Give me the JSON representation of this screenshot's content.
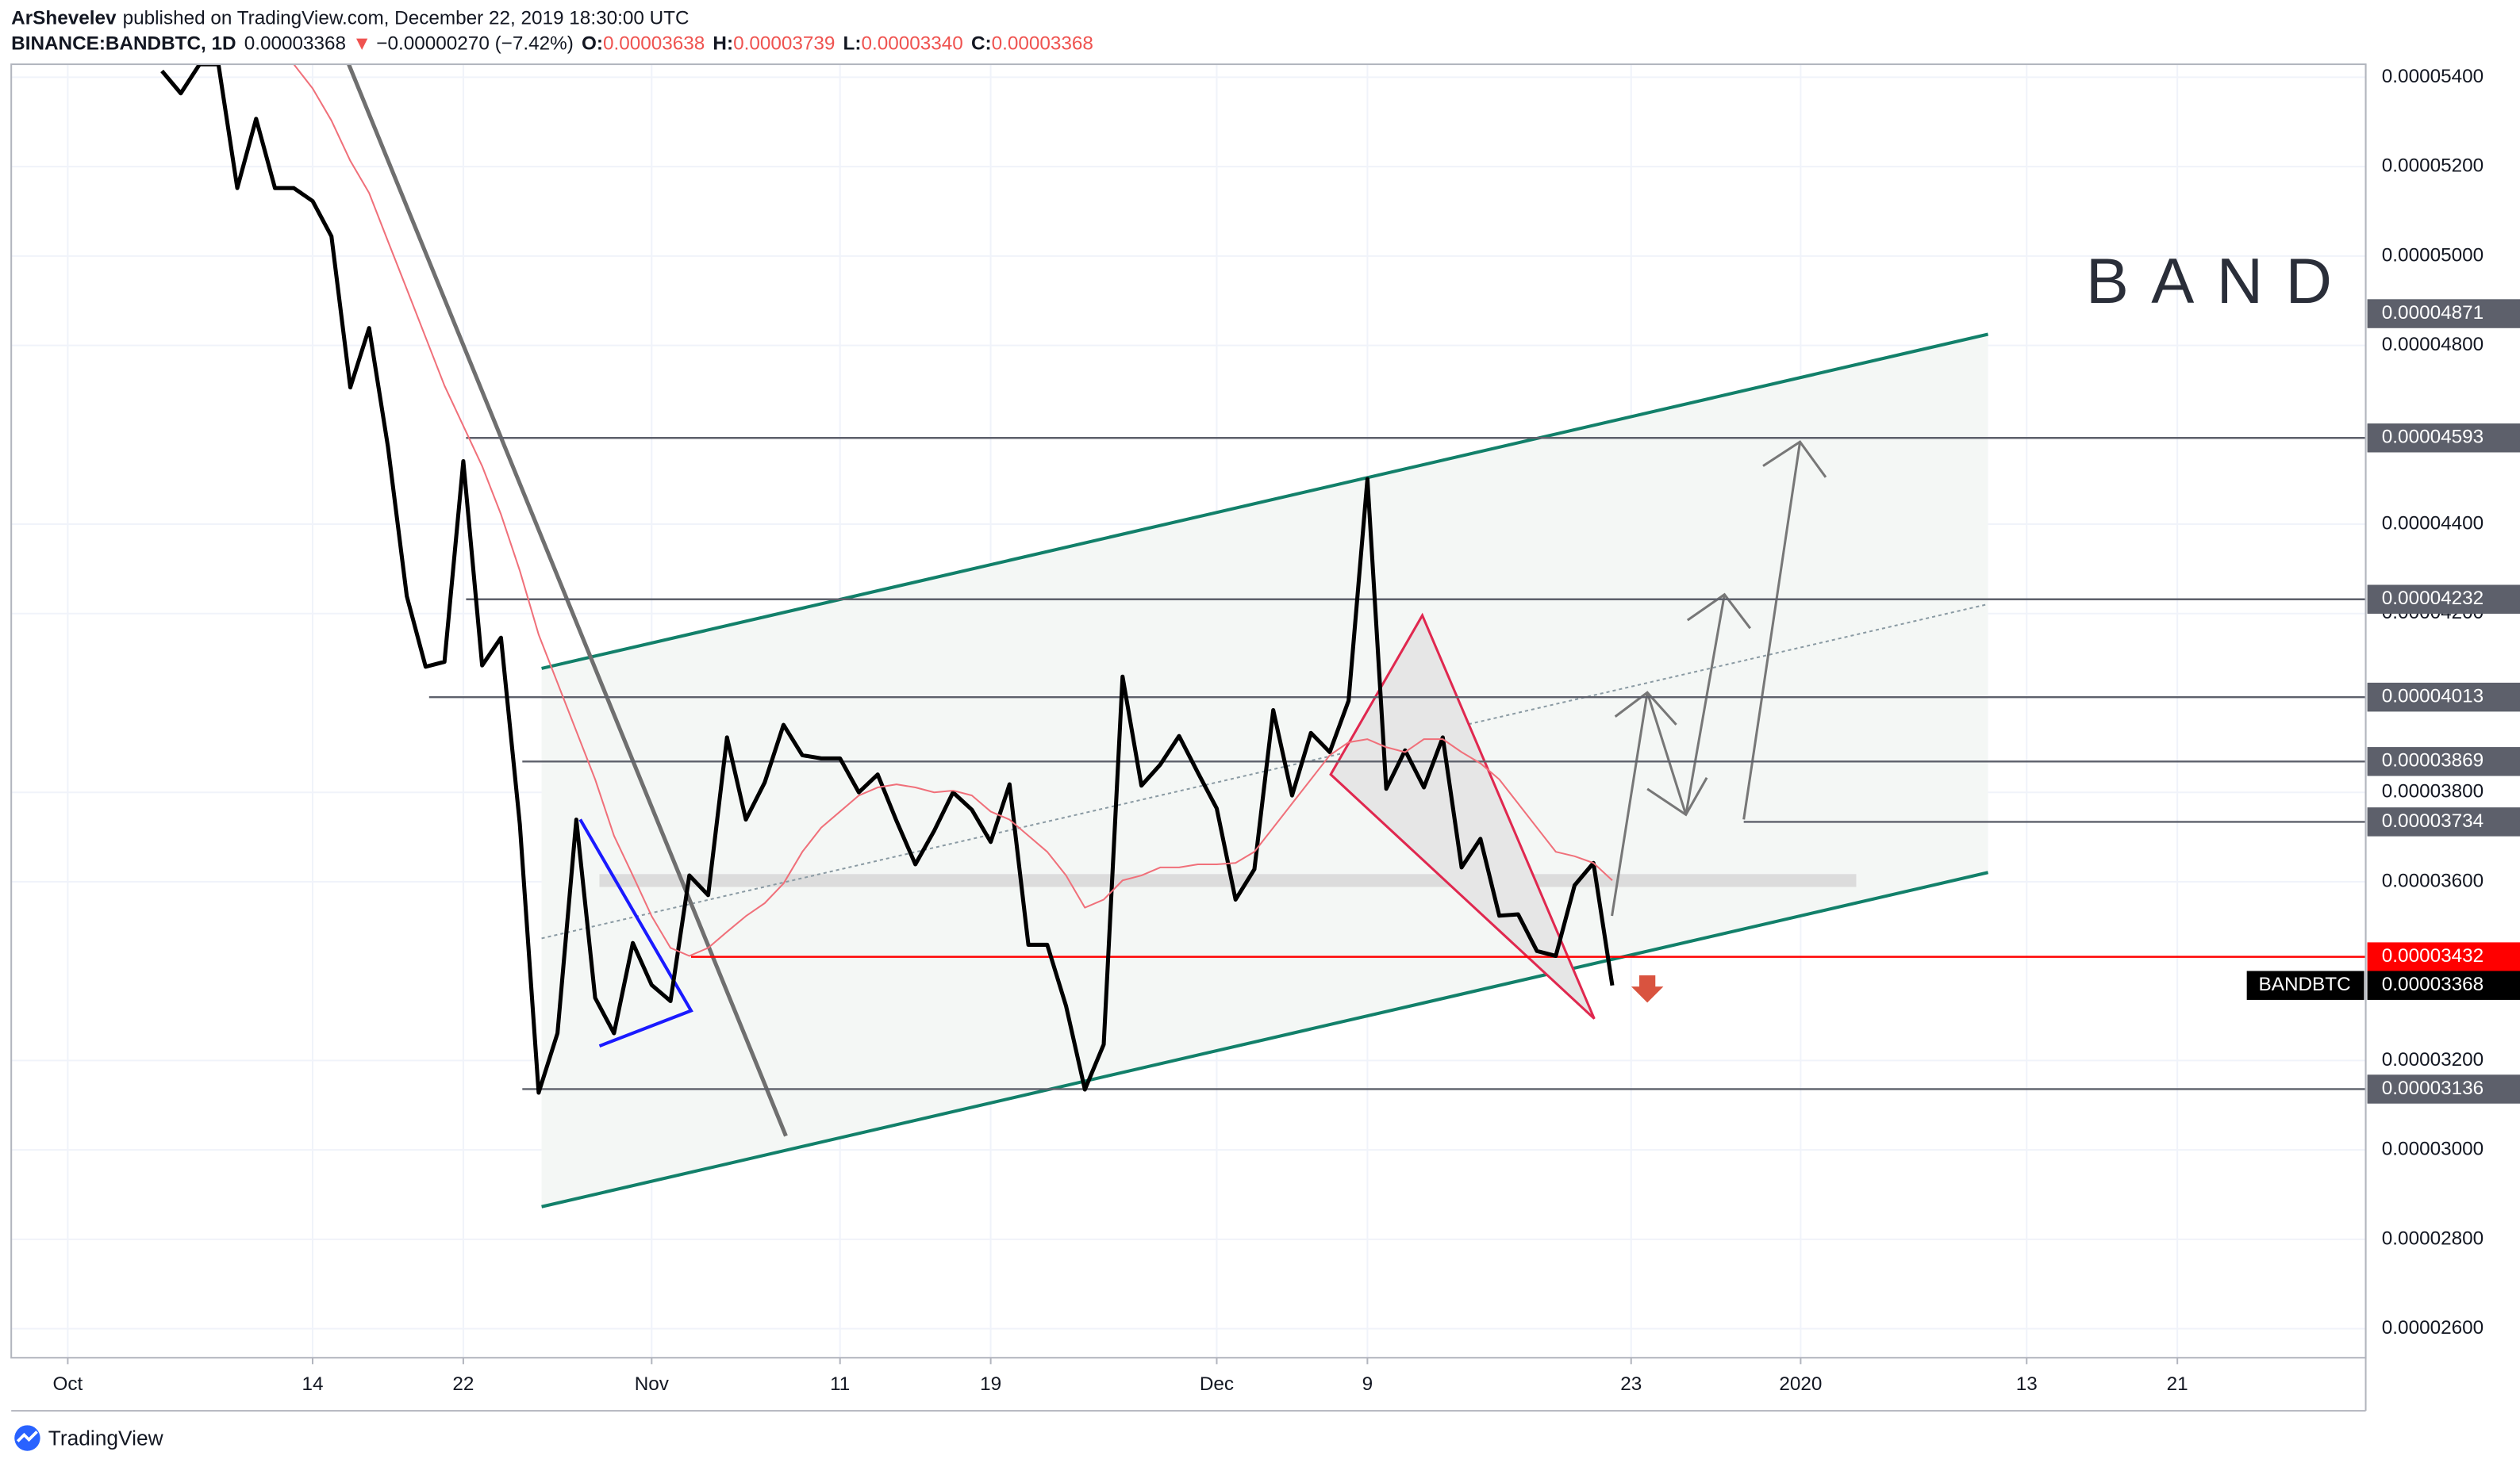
{
  "header": {
    "author": "ArShevelev",
    "published": "published on TradingView.com, December 22, 2019 18:30:00 UTC",
    "symbol": "BINANCE:BANDBTC, 1D",
    "last": "0.00003368",
    "change_arrow": "▼",
    "change": "−0.00000270 (−7.42%)",
    "ohlc": [
      {
        "key": "O:",
        "value": "0.00003638"
      },
      {
        "key": "H:",
        "value": "0.00003739"
      },
      {
        "key": "L:",
        "value": "0.00003340"
      },
      {
        "key": "C:",
        "value": "0.00003368"
      }
    ]
  },
  "chart_data": {
    "type": "line",
    "watermark": "BAND",
    "x": [
      "2019-10-06",
      "2019-10-07",
      "2019-10-08",
      "2019-10-09",
      "2019-10-10",
      "2019-10-11",
      "2019-10-12",
      "2019-10-13",
      "2019-10-14",
      "2019-10-15",
      "2019-10-16",
      "2019-10-17",
      "2019-10-18",
      "2019-10-19",
      "2019-10-20",
      "2019-10-21",
      "2019-10-22",
      "2019-10-23",
      "2019-10-24",
      "2019-10-25",
      "2019-10-26",
      "2019-10-27",
      "2019-10-28",
      "2019-10-29",
      "2019-10-30",
      "2019-10-31",
      "2019-11-01",
      "2019-11-02",
      "2019-11-03",
      "2019-11-04",
      "2019-11-05",
      "2019-11-06",
      "2019-11-07",
      "2019-11-08",
      "2019-11-09",
      "2019-11-10",
      "2019-11-11",
      "2019-11-12",
      "2019-11-13",
      "2019-11-14",
      "2019-11-15",
      "2019-11-16",
      "2019-11-17",
      "2019-11-18",
      "2019-11-19",
      "2019-11-20",
      "2019-11-21",
      "2019-11-22",
      "2019-11-23",
      "2019-11-24",
      "2019-11-25",
      "2019-11-26",
      "2019-11-27",
      "2019-11-28",
      "2019-11-29",
      "2019-11-30",
      "2019-12-01",
      "2019-12-02",
      "2019-12-03",
      "2019-12-04",
      "2019-12-05",
      "2019-12-06",
      "2019-12-07",
      "2019-12-08",
      "2019-12-09",
      "2019-12-10",
      "2019-12-11",
      "2019-12-12",
      "2019-12-13",
      "2019-12-14",
      "2019-12-15",
      "2019-12-16",
      "2019-12-17",
      "2019-12-18",
      "2019-12-19",
      "2019-12-20",
      "2019-12-21",
      "2019-12-22"
    ],
    "series": [
      {
        "name": "BANDBTC",
        "color": "#000000",
        "values": [
          5.414e-05,
          5.364e-05,
          5.429e-05,
          5.429e-05,
          5.152e-05,
          5.307e-05,
          5.152e-05,
          5.152e-05,
          5.123e-05,
          5.044e-05,
          4.706e-05,
          4.839e-05,
          4.573e-05,
          4.239e-05,
          4.081e-05,
          4.092e-05,
          4.541e-05,
          4.084e-05,
          4.146e-05,
          3.729e-05,
          3.128e-05,
          3.261e-05,
          3.739e-05,
          3.34e-05,
          3.261e-05,
          3.463e-05,
          3.369e-05,
          3.333e-05,
          3.614e-05,
          3.57e-05,
          3.923e-05,
          3.739e-05,
          3.822e-05,
          3.951e-05,
          3.883e-05,
          3.876e-05,
          3.876e-05,
          3.8e-05,
          3.84e-05,
          3.736e-05,
          3.639e-05,
          3.714e-05,
          3.8e-05,
          3.761e-05,
          3.689e-05,
          3.818e-05,
          3.459e-05,
          3.459e-05,
          3.322e-05,
          3.135e-05,
          3.236e-05,
          4.059e-05,
          3.815e-05,
          3.862e-05,
          3.926e-05,
          3.844e-05,
          3.764e-05,
          3.56e-05,
          3.628e-05,
          3.984e-05,
          3.793e-05,
          3.933e-05,
          3.89e-05,
          4.005e-05,
          4.501e-05,
          3.808e-05,
          3.894e-05,
          3.811e-05,
          3.923e-05,
          3.632e-05,
          3.696e-05,
          3.524e-05,
          3.527e-05,
          3.445e-05,
          3.434e-05,
          3.592e-05,
          3.642e-05,
          3.368e-05
        ]
      },
      {
        "color": "#f0707a",
        "values": [
          null,
          null,
          null,
          null,
          null,
          null,
          null,
          5.429e-05,
          5.375e-05,
          5.303e-05,
          5.213e-05,
          5.141e-05,
          5.033e-05,
          4.926e-05,
          4.818e-05,
          4.71e-05,
          4.62e-05,
          4.53e-05,
          4.422e-05,
          4.296e-05,
          4.153e-05,
          4.045e-05,
          3.937e-05,
          3.829e-05,
          3.703e-05,
          3.614e-05,
          3.523e-05,
          3.452e-05,
          3.434e-05,
          3.452e-05,
          3.488e-05,
          3.523e-05,
          3.552e-05,
          3.596e-05,
          3.667e-05,
          3.721e-05,
          3.757e-05,
          3.793e-05,
          3.811e-05,
          3.818e-05,
          3.811e-05,
          3.8e-05,
          3.804e-05,
          3.793e-05,
          3.757e-05,
          3.739e-05,
          3.703e-05,
          3.667e-05,
          3.614e-05,
          3.542e-05,
          3.56e-05,
          3.603e-05,
          3.614e-05,
          3.632e-05,
          3.632e-05,
          3.639e-05,
          3.639e-05,
          3.642e-05,
          3.667e-05,
          3.721e-05,
          3.775e-05,
          3.829e-05,
          3.883e-05,
          3.912e-05,
          3.919e-05,
          3.901e-05,
          3.89e-05,
          3.919e-05,
          3.919e-05,
          3.89e-05,
          3.865e-05,
          3.829e-05,
          3.775e-05,
          3.721e-05,
          3.667e-05,
          3.657e-05,
          3.642e-05,
          3.603e-05
        ]
      }
    ],
    "xlim": [
      "2019-09-28",
      "2020-01-31"
    ],
    "xticks": [
      {
        "value": "2019-10-01",
        "label": "Oct"
      },
      {
        "value": "2019-10-14",
        "label": "14"
      },
      {
        "value": "2019-10-22",
        "label": "22"
      },
      {
        "value": "2019-11-01",
        "label": "Nov"
      },
      {
        "value": "2019-11-11",
        "label": "11"
      },
      {
        "value": "2019-11-19",
        "label": "19"
      },
      {
        "value": "2019-12-01",
        "label": "Dec"
      },
      {
        "value": "2019-12-09",
        "label": "9"
      },
      {
        "value": "2019-12-23",
        "label": "23"
      },
      {
        "value": "2020-01-01",
        "label": "2020"
      },
      {
        "value": "2020-01-13",
        "label": "13"
      },
      {
        "value": "2020-01-21",
        "label": "21"
      }
    ],
    "ylim": [
      2.535e-05,
      5.429e-05
    ],
    "yticks": [
      {
        "value": 5.4e-05,
        "label": "0.00005400"
      },
      {
        "value": 5.2e-05,
        "label": "0.00005200"
      },
      {
        "value": 5e-05,
        "label": "0.00005000"
      },
      {
        "value": 4.8e-05,
        "label": "0.00004800"
      },
      {
        "value": 4.4e-05,
        "label": "0.00004400"
      },
      {
        "value": 4.2e-05,
        "label": "0.00004200"
      },
      {
        "value": 3.8e-05,
        "label": "0.00003800"
      },
      {
        "value": 3.6e-05,
        "label": "0.00003600"
      },
      {
        "value": 3.2e-05,
        "label": "0.00003200"
      },
      {
        "value": 3e-05,
        "label": "0.00003000"
      },
      {
        "value": 2.8e-05,
        "label": "0.00002800"
      },
      {
        "value": 2.6e-05,
        "label": "0.00002600"
      }
    ],
    "grid": true,
    "levels": [
      {
        "value": 4.871e-05,
        "color": "#5d606b"
      },
      {
        "value": 4.593e-05,
        "color": "#5d606b"
      },
      {
        "value": 4.232e-05,
        "color": "#5d606b"
      },
      {
        "value": 4.013e-05,
        "color": "#5d606b"
      },
      {
        "value": 3.869e-05,
        "color": "#5d606b"
      },
      {
        "value": 3.734e-05,
        "color": "#5d606b"
      },
      {
        "value": 3.432e-05,
        "color": "#ff0000"
      },
      {
        "value": 3.136e-05,
        "color": "#5d606b"
      }
    ]
  },
  "footer": {
    "logo": "TradingView"
  }
}
